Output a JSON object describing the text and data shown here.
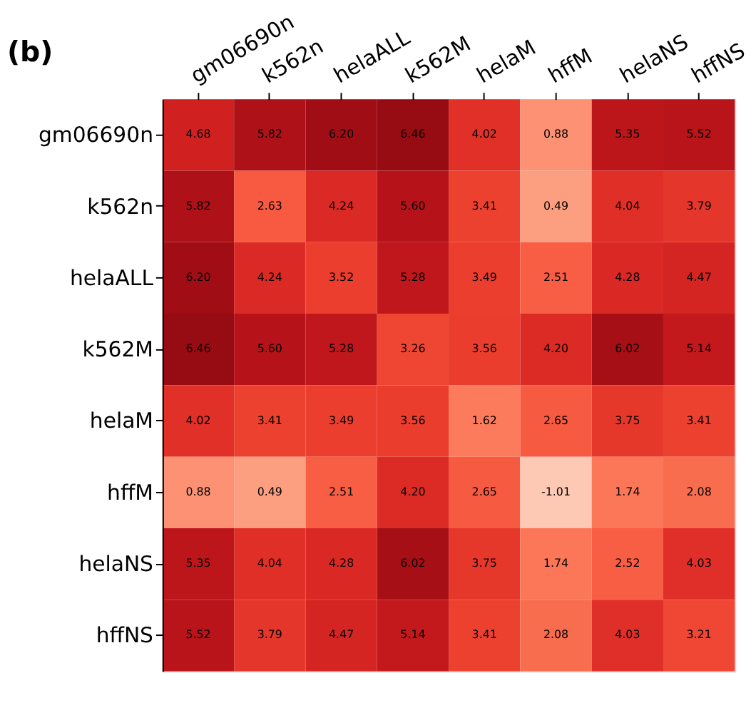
{
  "chart_data": {
    "type": "heatmap",
    "title": "(b)",
    "categories": [
      "gm06690n",
      "k562n",
      "helaALL",
      "k562M",
      "helaM",
      "hffM",
      "helaNS",
      "hffNS"
    ],
    "y_categories": [
      "gm06690n",
      "k562n",
      "helaALL",
      "k562M",
      "helaM",
      "hffM",
      "helaNS",
      "hffNS"
    ],
    "cells": [
      [
        4.68,
        5.82,
        6.2,
        6.46,
        4.02,
        0.88,
        5.35,
        5.52
      ],
      [
        5.82,
        2.63,
        4.24,
        5.6,
        3.41,
        0.49,
        4.04,
        3.79
      ],
      [
        6.2,
        4.24,
        3.52,
        5.28,
        3.49,
        2.51,
        4.28,
        4.47
      ],
      [
        6.46,
        5.6,
        5.28,
        3.26,
        3.56,
        4.2,
        6.02,
        5.14
      ],
      [
        4.02,
        3.41,
        3.49,
        3.56,
        1.62,
        2.65,
        3.75,
        3.41
      ],
      [
        0.88,
        0.49,
        2.51,
        4.2,
        2.65,
        -1.01,
        1.74,
        2.08
      ],
      [
        5.35,
        4.04,
        4.28,
        6.02,
        3.75,
        1.74,
        2.52,
        4.03
      ],
      [
        5.52,
        3.79,
        4.47,
        5.14,
        3.41,
        2.08,
        4.03,
        3.21
      ]
    ],
    "cell_labels": [
      [
        "4.68",
        "5.82",
        "6.20",
        "6.46",
        "4.02",
        "0.88",
        "5.35",
        "5.52"
      ],
      [
        "5.82",
        "2.63",
        "4.24",
        "5.60",
        "3.41",
        "0.49",
        "4.04",
        "3.79"
      ],
      [
        "6.20",
        "4.24",
        "3.52",
        "5.28",
        "3.49",
        "2.51",
        "4.28",
        "4.47"
      ],
      [
        "6.46",
        "5.60",
        "5.28",
        "3.26",
        "3.56",
        "4.20",
        "6.02",
        "5.14"
      ],
      [
        "4.02",
        "3.41",
        "3.49",
        "3.56",
        "1.62",
        "2.65",
        "3.75",
        "3.41"
      ],
      [
        "0.88",
        "0.49",
        "2.51",
        "4.20",
        "2.65",
        "-1.01",
        "1.74",
        "2.08"
      ],
      [
        "5.35",
        "4.04",
        "4.28",
        "6.02",
        "3.75",
        "1.74",
        "2.52",
        "4.03"
      ],
      [
        "5.52",
        "3.79",
        "4.47",
        "5.14",
        "3.41",
        "2.08",
        "4.03",
        "3.21"
      ]
    ]
  }
}
